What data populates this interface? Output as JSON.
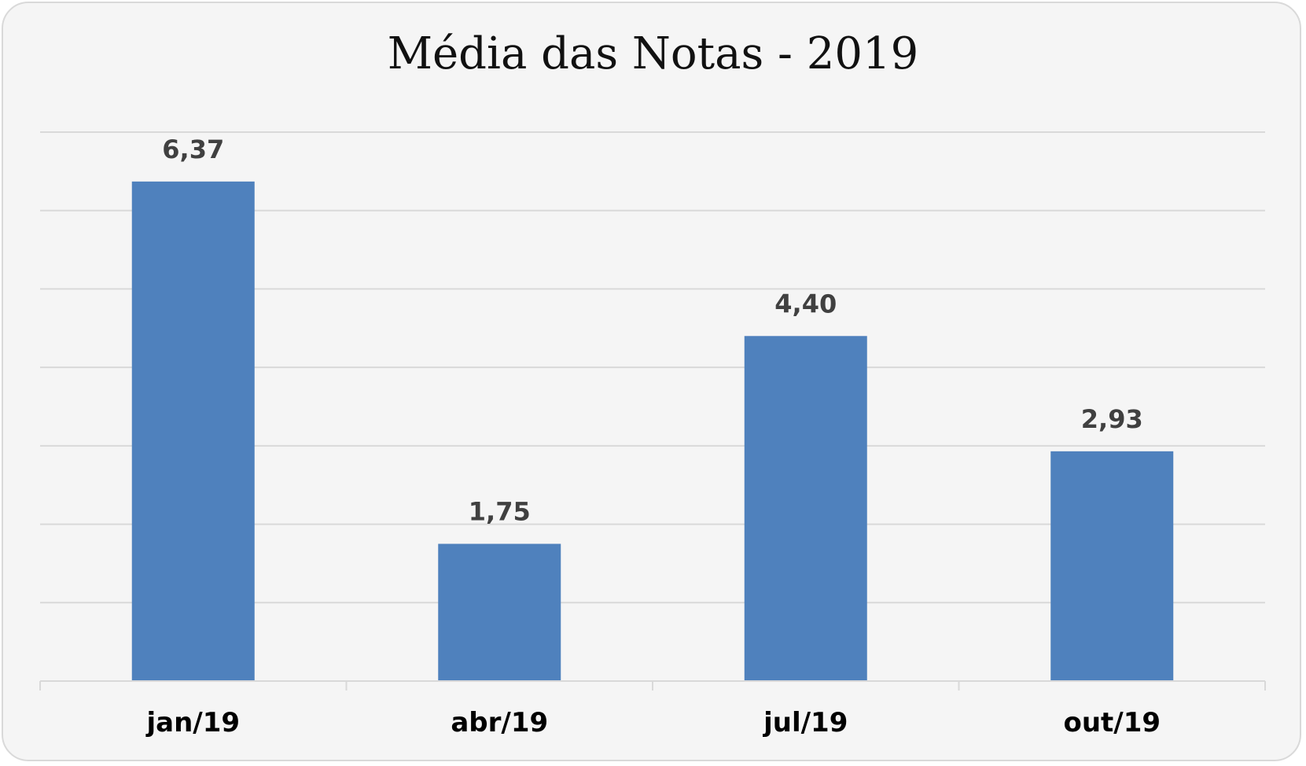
{
  "chart_data": {
    "type": "bar",
    "title": "Média das Notas - 2019",
    "xlabel": "",
    "ylabel": "",
    "categories": [
      "jan/19",
      "abr/19",
      "jul/19",
      "out/19"
    ],
    "series": [
      {
        "values": [
          6.37,
          1.75,
          4.4,
          2.93
        ],
        "labels": [
          "6,37",
          "1,75",
          "4,40",
          "2,93"
        ],
        "color": "#4f81bd"
      }
    ],
    "ylim": [
      0,
      7
    ],
    "grid": true,
    "legend": "none",
    "colors": {
      "bar": "#4f81bd",
      "gridline": "#d9d9d9",
      "background": "#f5f5f5",
      "data_label": "#404040"
    }
  }
}
